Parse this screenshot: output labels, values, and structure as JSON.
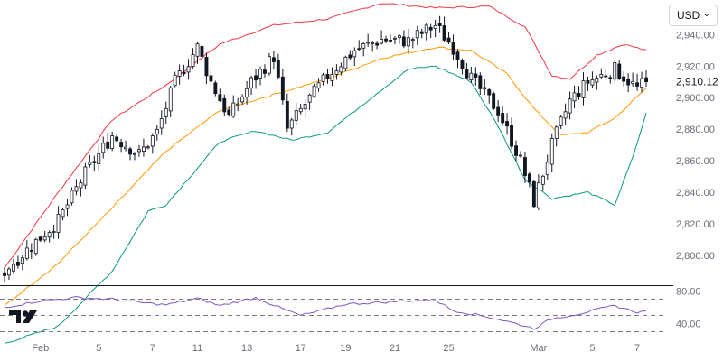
{
  "currency": {
    "label": "USD",
    "chevron_icon": "chevron-down-icon"
  },
  "logo": {
    "icon": "tradingview-logo-icon",
    "text": "TV"
  },
  "colors": {
    "up": "#131722",
    "down": "#131722",
    "upper_band": "#f23645",
    "middle_band": "#ff9800",
    "lower_band": "#089981",
    "rsi_line": "#7e57c2",
    "grid_dash": "#787b86",
    "axis_text": "#6a6d78"
  },
  "chart_data": [
    {
      "type": "candlestick",
      "indicator": "Bollinger Bands",
      "y_ticks": [
        "2,800.00",
        "2,820.00",
        "2,840.00",
        "2,860.00",
        "2,880.00",
        "2,900.00",
        "2,920.00",
        "2,940.00"
      ],
      "y_tick_values": [
        2800,
        2820,
        2840,
        2860,
        2880,
        2900,
        2920,
        2940
      ],
      "ylim": [
        2781,
        2962
      ],
      "last_price_label": "2,910.12",
      "last_price": 2910.12,
      "x_ticks": [
        "Feb",
        "5",
        "7",
        "11",
        "13",
        "17",
        "19",
        "21",
        "25",
        "Mar",
        "5",
        "7"
      ],
      "x_tick_index": [
        8,
        21,
        33,
        43,
        54,
        66,
        76,
        87,
        99,
        119,
        131,
        141
      ],
      "points": 144,
      "anchor_closes": [
        [
          0,
          2790
        ],
        [
          6,
          2806
        ],
        [
          12,
          2822
        ],
        [
          18,
          2852
        ],
        [
          24,
          2876
        ],
        [
          30,
          2864
        ],
        [
          34,
          2878
        ],
        [
          38,
          2910
        ],
        [
          43,
          2932
        ],
        [
          46,
          2910
        ],
        [
          50,
          2888
        ],
        [
          55,
          2910
        ],
        [
          60,
          2926
        ],
        [
          63,
          2880
        ],
        [
          67,
          2896
        ],
        [
          72,
          2914
        ],
        [
          78,
          2930
        ],
        [
          84,
          2937
        ],
        [
          90,
          2936
        ],
        [
          96,
          2946
        ],
        [
          100,
          2932
        ],
        [
          104,
          2912
        ],
        [
          110,
          2892
        ],
        [
          115,
          2860
        ],
        [
          118,
          2834
        ],
        [
          122,
          2870
        ],
        [
          126,
          2898
        ],
        [
          130,
          2910
        ],
        [
          136,
          2918
        ],
        [
          141,
          2906
        ],
        [
          143,
          2910.12
        ]
      ],
      "upper_band": [
        [
          0,
          2792
        ],
        [
          12,
          2840
        ],
        [
          24,
          2886
        ],
        [
          36,
          2908
        ],
        [
          48,
          2934
        ],
        [
          60,
          2946
        ],
        [
          72,
          2950
        ],
        [
          84,
          2960
        ],
        [
          96,
          2957
        ],
        [
          108,
          2958
        ],
        [
          116,
          2945
        ],
        [
          122,
          2914
        ],
        [
          126,
          2912
        ],
        [
          132,
          2927
        ],
        [
          138,
          2934
        ],
        [
          143,
          2930
        ]
      ],
      "middle_band": [
        [
          0,
          2768
        ],
        [
          12,
          2795
        ],
        [
          24,
          2830
        ],
        [
          36,
          2866
        ],
        [
          48,
          2892
        ],
        [
          60,
          2902
        ],
        [
          72,
          2912
        ],
        [
          84,
          2925
        ],
        [
          96,
          2932
        ],
        [
          104,
          2930
        ],
        [
          112,
          2915
        ],
        [
          118,
          2893
        ],
        [
          124,
          2876
        ],
        [
          130,
          2878
        ],
        [
          136,
          2887
        ],
        [
          143,
          2906
        ]
      ],
      "lower_band": [
        [
          0,
          2744
        ],
        [
          12,
          2755
        ],
        [
          24,
          2790
        ],
        [
          32,
          2828
        ],
        [
          36,
          2832
        ],
        [
          48,
          2872
        ],
        [
          56,
          2879
        ],
        [
          64,
          2873
        ],
        [
          72,
          2878
        ],
        [
          84,
          2905
        ],
        [
          90,
          2918
        ],
        [
          96,
          2920
        ],
        [
          104,
          2910
        ],
        [
          110,
          2882
        ],
        [
          116,
          2848
        ],
        [
          122,
          2836
        ],
        [
          130,
          2840
        ],
        [
          136,
          2832
        ],
        [
          140,
          2862
        ],
        [
          143,
          2890
        ]
      ]
    },
    {
      "type": "line",
      "indicator": "RSI",
      "y_ticks": [
        "80.00",
        "40.00"
      ],
      "y_tick_values": [
        80,
        40
      ],
      "ylim": [
        25,
        85
      ],
      "bands": [
        70,
        50,
        30
      ],
      "points": [
        [
          0,
          60
        ],
        [
          8,
          68
        ],
        [
          16,
          72
        ],
        [
          24,
          70
        ],
        [
          30,
          66
        ],
        [
          36,
          63
        ],
        [
          43,
          71
        ],
        [
          48,
          62
        ],
        [
          56,
          72
        ],
        [
          62,
          58
        ],
        [
          66,
          50
        ],
        [
          70,
          55
        ],
        [
          76,
          64
        ],
        [
          84,
          66
        ],
        [
          90,
          68
        ],
        [
          96,
          69
        ],
        [
          100,
          56
        ],
        [
          108,
          48
        ],
        [
          114,
          40
        ],
        [
          118,
          34
        ],
        [
          122,
          46
        ],
        [
          128,
          52
        ],
        [
          132,
          57
        ],
        [
          136,
          62
        ],
        [
          141,
          54
        ],
        [
          143,
          55
        ]
      ]
    }
  ]
}
